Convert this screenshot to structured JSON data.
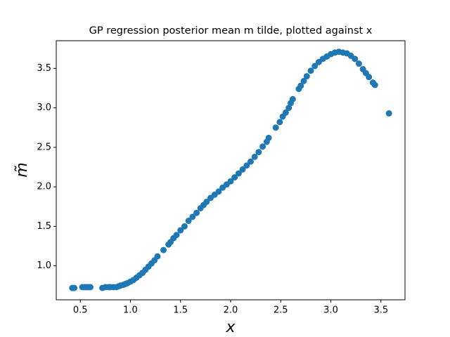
{
  "chart_data": {
    "type": "scatter",
    "title": "GP regression posterior mean m tilde, plotted against x",
    "x_label": "x",
    "y_label": "m̃",
    "color": "#1f77b4",
    "x": [
      0.42,
      0.44,
      0.52,
      0.54,
      0.56,
      0.58,
      0.6,
      0.72,
      0.75,
      0.78,
      0.8,
      0.83,
      0.86,
      0.88,
      0.9,
      0.93,
      0.95,
      0.97,
      1.0,
      1.03,
      1.06,
      1.09,
      1.12,
      1.15,
      1.18,
      1.21,
      1.24,
      1.27,
      1.33,
      1.38,
      1.4,
      1.43,
      1.46,
      1.5,
      1.54,
      1.58,
      1.62,
      1.66,
      1.7,
      1.73,
      1.76,
      1.8,
      1.84,
      1.88,
      1.92,
      1.96,
      2.0,
      2.04,
      2.08,
      2.12,
      2.16,
      2.2,
      2.24,
      2.28,
      2.32,
      2.36,
      2.38,
      2.45,
      2.49,
      2.52,
      2.55,
      2.58,
      2.6,
      2.62,
      2.68,
      2.7,
      2.73,
      2.76,
      2.8,
      2.84,
      2.88,
      2.92,
      2.96,
      3.0,
      3.04,
      3.08,
      3.12,
      3.16,
      3.2,
      3.24,
      3.28,
      3.32,
      3.35,
      3.38,
      3.42,
      3.44,
      3.58
    ],
    "values": [
      0.72,
      0.72,
      0.73,
      0.73,
      0.73,
      0.73,
      0.73,
      0.72,
      0.73,
      0.73,
      0.73,
      0.73,
      0.73,
      0.74,
      0.75,
      0.76,
      0.77,
      0.78,
      0.8,
      0.82,
      0.85,
      0.88,
      0.91,
      0.95,
      0.99,
      1.03,
      1.07,
      1.12,
      1.2,
      1.27,
      1.3,
      1.35,
      1.39,
      1.45,
      1.5,
      1.57,
      1.62,
      1.67,
      1.73,
      1.77,
      1.81,
      1.86,
      1.9,
      1.94,
      1.99,
      2.03,
      2.07,
      2.12,
      2.17,
      2.22,
      2.27,
      2.32,
      2.38,
      2.44,
      2.51,
      2.57,
      2.62,
      2.75,
      2.82,
      2.89,
      2.94,
      3.0,
      3.06,
      3.11,
      3.24,
      3.28,
      3.34,
      3.4,
      3.47,
      3.53,
      3.58,
      3.62,
      3.65,
      3.68,
      3.7,
      3.71,
      3.7,
      3.69,
      3.66,
      3.62,
      3.56,
      3.49,
      3.44,
      3.39,
      3.32,
      3.29,
      2.93
    ],
    "xlim": [
      0.26,
      3.74
    ],
    "ylim": [
      0.57,
      3.85
    ],
    "xticks": [
      0.5,
      {
        "value": 1.0,
        "label": "1.0"
      },
      1.5,
      {
        "value": 2.0,
        "label": "2.0"
      },
      2.5,
      {
        "value": 3.0,
        "label": "3.0"
      },
      3.5
    ],
    "yticks": [
      {
        "value": 1.0,
        "label": "1.0"
      },
      1.5,
      {
        "value": 2.0,
        "label": "2.0"
      },
      2.5,
      {
        "value": 3.0,
        "label": "3.0"
      },
      3.5
    ],
    "grid": false
  }
}
